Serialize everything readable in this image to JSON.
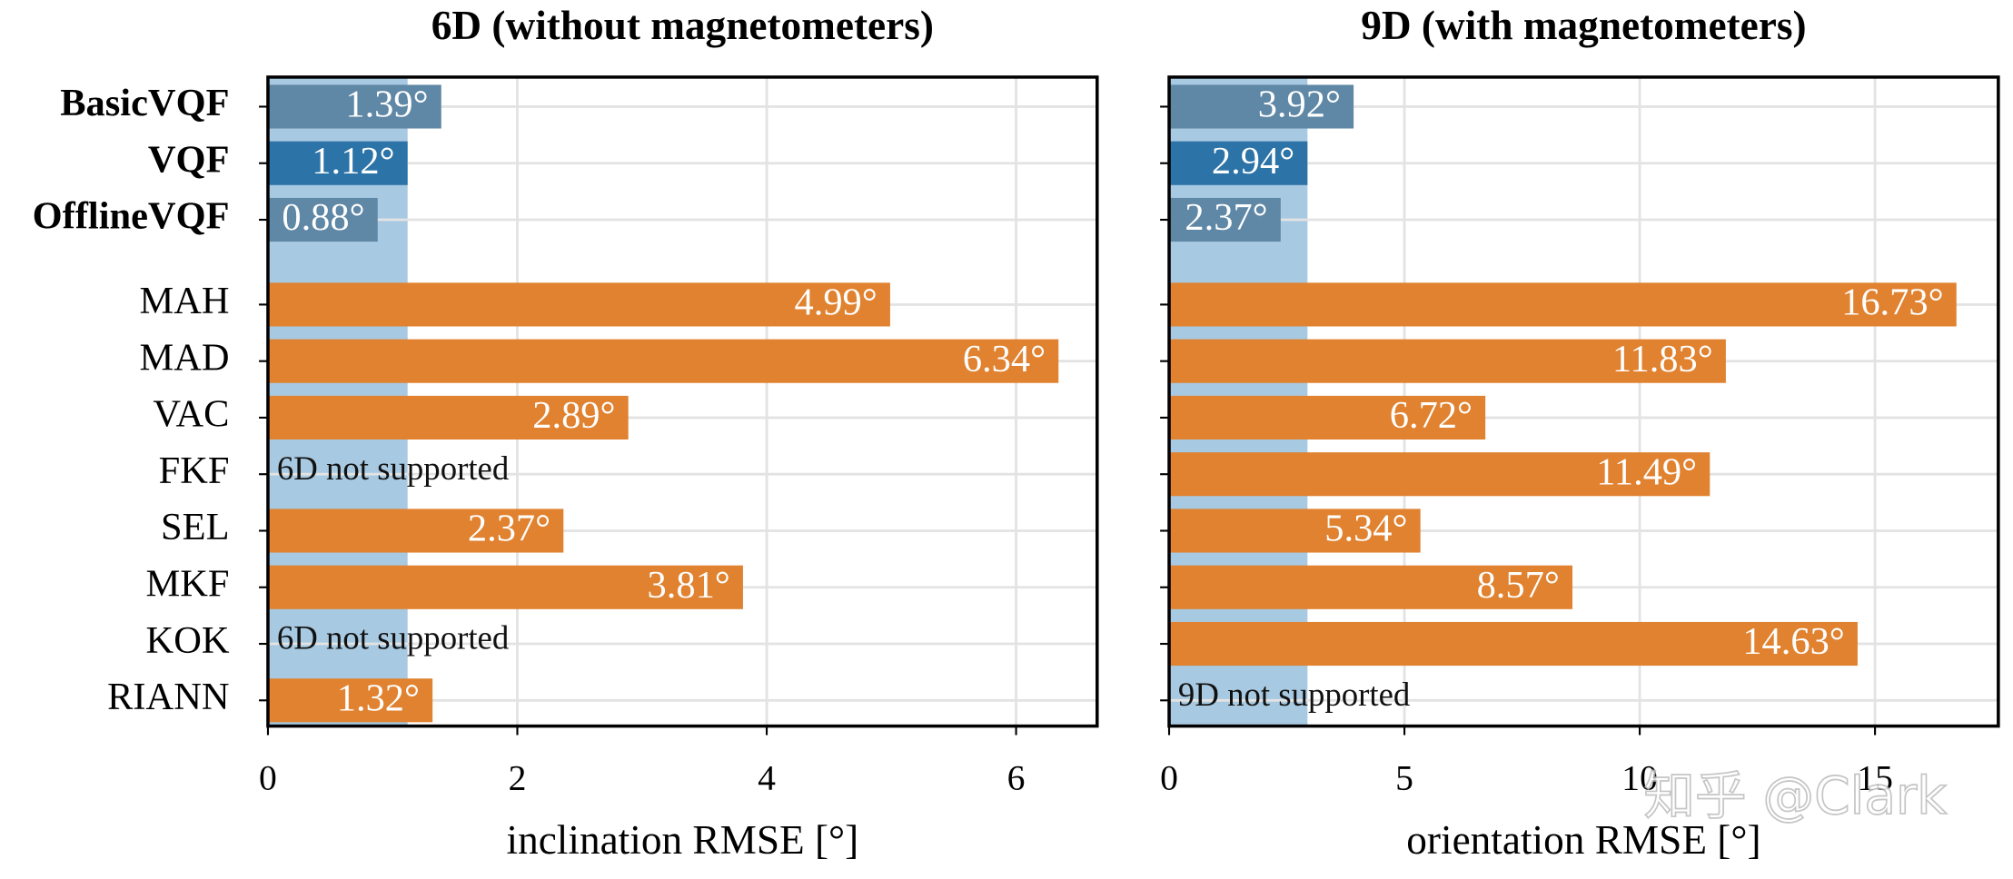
{
  "chart_data": [
    {
      "type": "barh",
      "title": "6D (without magnetometers)",
      "xlabel": "inclination RMSE [°]",
      "categories": [
        "BasicVQF",
        "VQF",
        "OfflineVQF",
        "MAH",
        "MAD",
        "VAC",
        "FKF",
        "SEL",
        "MKF",
        "KOK",
        "RIANN"
      ],
      "values": [
        1.39,
        1.12,
        0.88,
        4.99,
        6.34,
        2.89,
        null,
        2.37,
        3.81,
        null,
        1.32
      ],
      "value_labels": [
        "1.39°",
        "1.12°",
        "0.88°",
        "4.99°",
        "6.34°",
        "2.89°",
        "6D not supported",
        "2.37°",
        "3.81°",
        "6D not supported",
        "1.32°"
      ],
      "colors": [
        "#5f87a6",
        "#2c73a7",
        "#5f87a6",
        "#e0822f",
        "#e0822f",
        "#e0822f",
        "#e0822f",
        "#e0822f",
        "#e0822f",
        "#e0822f",
        "#e0822f"
      ],
      "band_color": "#a7c9e1",
      "show_category_labels": true,
      "xlim": [
        0,
        6.65
      ],
      "xticks": [
        0,
        2,
        4,
        6
      ],
      "grid": true
    },
    {
      "type": "barh",
      "title": "9D (with magnetometers)",
      "xlabel": "orientation RMSE [°]",
      "categories": [
        "BasicVQF",
        "VQF",
        "OfflineVQF",
        "MAH",
        "MAD",
        "VAC",
        "FKF",
        "SEL",
        "MKF",
        "KOK",
        "RIANN"
      ],
      "values": [
        3.92,
        2.94,
        2.37,
        16.73,
        11.83,
        6.72,
        11.49,
        5.34,
        8.57,
        14.63,
        null
      ],
      "value_labels": [
        "3.92°",
        "2.94°",
        "2.37°",
        "16.73°",
        "11.83°",
        "6.72°",
        "11.49°",
        "5.34°",
        "8.57°",
        "14.63°",
        "9D not supported"
      ],
      "colors": [
        "#5f87a6",
        "#2c73a7",
        "#5f87a6",
        "#e0822f",
        "#e0822f",
        "#e0822f",
        "#e0822f",
        "#e0822f",
        "#e0822f",
        "#e0822f",
        "#e0822f"
      ],
      "band_color": "#a7c9e1",
      "show_category_labels": false,
      "xlim": [
        0,
        17.62
      ],
      "xticks": [
        0,
        5,
        10,
        15
      ],
      "grid": true
    }
  ],
  "watermark": "知乎 @Clark"
}
